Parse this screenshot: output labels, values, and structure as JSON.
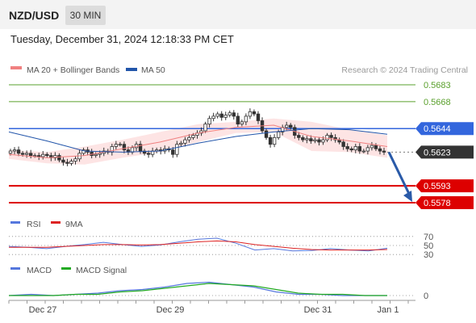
{
  "header": {
    "pair": "NZD/USD",
    "timeframe": "30 MIN",
    "datetime": "Tuesday, December 31, 2024 12:18:33 PM CET"
  },
  "legend": {
    "ma20": "MA 20 + Bollinger Bands",
    "ma50": "MA 50",
    "credit": "Research © 2024 Trading Central",
    "rsi": "RSI",
    "rsi_ma": "9MA",
    "macd": "MACD",
    "macd_signal": "MACD Signal"
  },
  "colors": {
    "candle": "#333333",
    "bollinger_fill": "#fde4e4",
    "ma20": "#f08080",
    "ma50": "#2255aa",
    "green_level": "#5aa02c",
    "blue_level": "#3366dd",
    "red_level": "#dd0000",
    "current": "#333333",
    "rsi": "#5577dd",
    "rsi_ma": "#dd2222",
    "macd": "#5577dd",
    "macd_signal": "#22aa22",
    "arrow": "#2a5aa8"
  },
  "chart_data": [
    {
      "type": "candlestick",
      "title": "NZD/USD 30 MIN",
      "x_ticks": [
        "Dec 27",
        "Dec 29",
        "Dec 31",
        "Jan 1"
      ],
      "ylim": [
        0.5573,
        0.5688
      ],
      "series": [
        {
          "name": "MA 20 + Bollinger Bands",
          "upper": [
            0.5625,
            0.5623,
            0.5628,
            0.5634,
            0.5641,
            0.5648,
            0.565,
            0.5653,
            0.565,
            0.5643,
            0.5638
          ],
          "middle": [
            0.5621,
            0.5618,
            0.562,
            0.5626,
            0.5632,
            0.564,
            0.5645,
            0.5647,
            0.5637,
            0.5633,
            0.5628
          ],
          "lower": [
            0.5617,
            0.5613,
            0.5612,
            0.5618,
            0.5623,
            0.5632,
            0.564,
            0.5641,
            0.5624,
            0.5623,
            0.5618
          ]
        },
        {
          "name": "MA 50",
          "values": [
            0.5641,
            0.5633,
            0.5624,
            0.5623,
            0.5624,
            0.5631,
            0.5637,
            0.5641,
            0.5644,
            0.5643,
            0.5639
          ]
        }
      ],
      "price_levels": [
        {
          "label": "0.5683",
          "value": 0.5683,
          "kind": "resistance"
        },
        {
          "label": "0.5668",
          "value": 0.5668,
          "kind": "resistance"
        },
        {
          "label": "0.5644",
          "value": 0.5644,
          "kind": "pivot"
        },
        {
          "label": "0.5623",
          "value": 0.5623,
          "kind": "current"
        },
        {
          "label": "0.5593",
          "value": 0.5593,
          "kind": "target"
        },
        {
          "label": "0.5578",
          "value": 0.5578,
          "kind": "target"
        }
      ],
      "closes": [
        0.5624,
        0.5625,
        0.5622,
        0.5621,
        0.5622,
        0.562,
        0.562,
        0.5619,
        0.5621,
        0.562,
        0.5618,
        0.562,
        0.5616,
        0.5614,
        0.5613,
        0.5615,
        0.5617,
        0.5622,
        0.5625,
        0.5623,
        0.562,
        0.5621,
        0.5622,
        0.5624,
        0.5623,
        0.5628,
        0.563,
        0.563,
        0.5625,
        0.5623,
        0.5627,
        0.563,
        0.5624,
        0.5622,
        0.5621,
        0.5624,
        0.5625,
        0.5624,
        0.5626,
        0.5625,
        0.5621,
        0.563,
        0.5631,
        0.5634,
        0.5636,
        0.5638,
        0.564,
        0.5642,
        0.5648,
        0.5653,
        0.5655,
        0.5657,
        0.5654,
        0.5656,
        0.5658,
        0.5655,
        0.5648,
        0.565,
        0.5655,
        0.5659,
        0.5657,
        0.5651,
        0.5642,
        0.5636,
        0.563,
        0.5636,
        0.5641,
        0.5645,
        0.5647,
        0.5645,
        0.5638,
        0.5636,
        0.5634,
        0.5635,
        0.5633,
        0.5634,
        0.5632,
        0.5634,
        0.5638,
        0.5636,
        0.5634,
        0.5632,
        0.5628,
        0.5626,
        0.5625,
        0.5628,
        0.5624,
        0.5624,
        0.5627,
        0.5629,
        0.5626,
        0.5624,
        0.5623
      ]
    },
    {
      "type": "line",
      "title": "RSI",
      "y_ticks": [
        "70",
        "50",
        "30"
      ],
      "ylim": [
        25,
        75
      ],
      "series": [
        {
          "name": "RSI",
          "values": [
            48,
            46,
            43,
            48,
            52,
            57,
            52,
            48,
            51,
            58,
            64,
            66,
            55,
            40,
            43,
            38,
            39,
            43,
            40,
            38,
            44
          ]
        },
        {
          "name": "9MA",
          "values": [
            46,
            46,
            46,
            48,
            50,
            52,
            52,
            51,
            52,
            55,
            58,
            60,
            58,
            52,
            48,
            44,
            41,
            40,
            40,
            40,
            41
          ]
        }
      ]
    },
    {
      "type": "line",
      "title": "MACD",
      "y_ticks": [
        "0"
      ],
      "ylim": [
        -0.0004,
        0.0016
      ],
      "series": [
        {
          "name": "MACD",
          "values": [
            0.0,
            0.0001,
            0.0,
            0.0001,
            0.0002,
            0.0004,
            0.0005,
            0.0007,
            0.001,
            0.0011,
            0.0009,
            0.0007,
            0.0003,
            0.0001,
            0.0001,
            0.0,
            0.0,
            0.0
          ]
        },
        {
          "name": "MACD Signal",
          "values": [
            0.0,
            0.0,
            0.0,
            0.0001,
            0.0001,
            0.0003,
            0.0004,
            0.0006,
            0.0008,
            0.001,
            0.0009,
            0.0008,
            0.0005,
            0.0002,
            0.0001,
            0.0001,
            0.0,
            0.0
          ]
        }
      ]
    }
  ]
}
